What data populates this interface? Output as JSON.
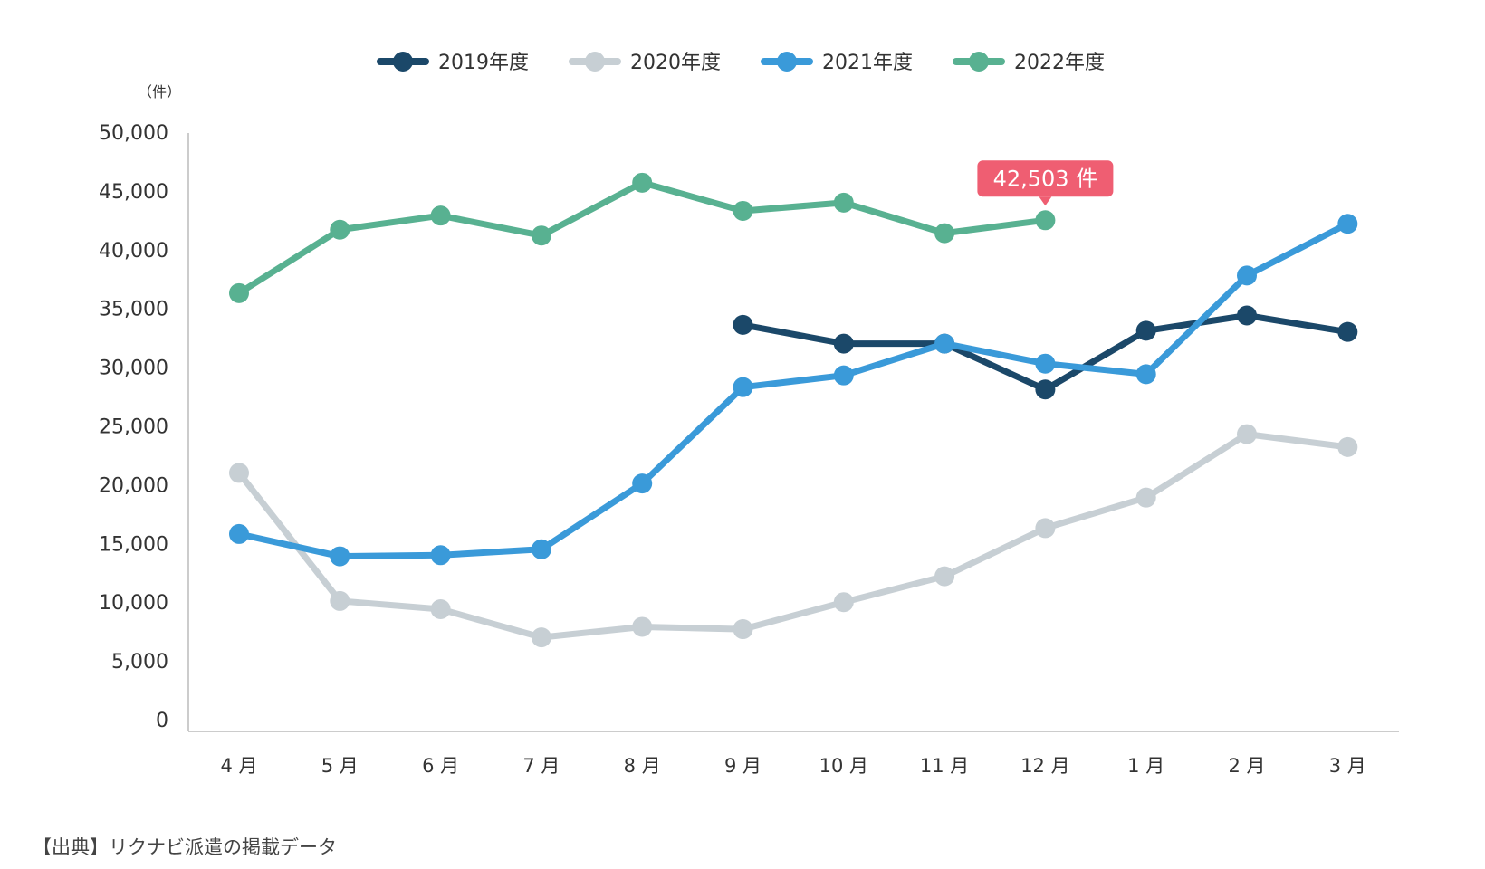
{
  "chart_data": {
    "type": "line",
    "categories": [
      "4 月",
      "5 月",
      "6 月",
      "7 月",
      "8 月",
      "9 月",
      "10 月",
      "11 月",
      "12 月",
      "1 月",
      "2 月",
      "3 月"
    ],
    "series": [
      {
        "name": "2019年度",
        "color": "#1b4869",
        "values": [
          null,
          null,
          null,
          null,
          null,
          33600,
          32000,
          32000,
          28100,
          33100,
          34400,
          33000
        ]
      },
      {
        "name": "2020年度",
        "color": "#c7cfd4",
        "values": [
          21000,
          10100,
          9400,
          7000,
          7900,
          7700,
          10000,
          12200,
          16300,
          18900,
          24300,
          23200
        ]
      },
      {
        "name": "2021年度",
        "color": "#3a9ad9",
        "values": [
          15800,
          13900,
          14000,
          14500,
          20100,
          28300,
          29300,
          32000,
          30300,
          29400,
          37800,
          42200
        ]
      },
      {
        "name": "2022年度",
        "color": "#58b191",
        "values": [
          36300,
          41700,
          42900,
          41200,
          45700,
          43300,
          44000,
          41400,
          42503,
          null,
          null,
          null
        ]
      }
    ],
    "yticks": [
      "50,000",
      "45,000",
      "40,000",
      "35,000",
      "30,000",
      "25,000",
      "20,000",
      "15,000",
      "10,000",
      "5,000",
      "0"
    ],
    "ylim": [
      0,
      50000
    ],
    "ylabel": "（件）",
    "annotation": {
      "text": "42,503 件",
      "series": "2022年度",
      "category": "12 月",
      "color": "#ef5e72"
    },
    "legend_position": "top-center",
    "grid": false
  },
  "source_note": "【出典】リクナビ派遣の掲載データ"
}
